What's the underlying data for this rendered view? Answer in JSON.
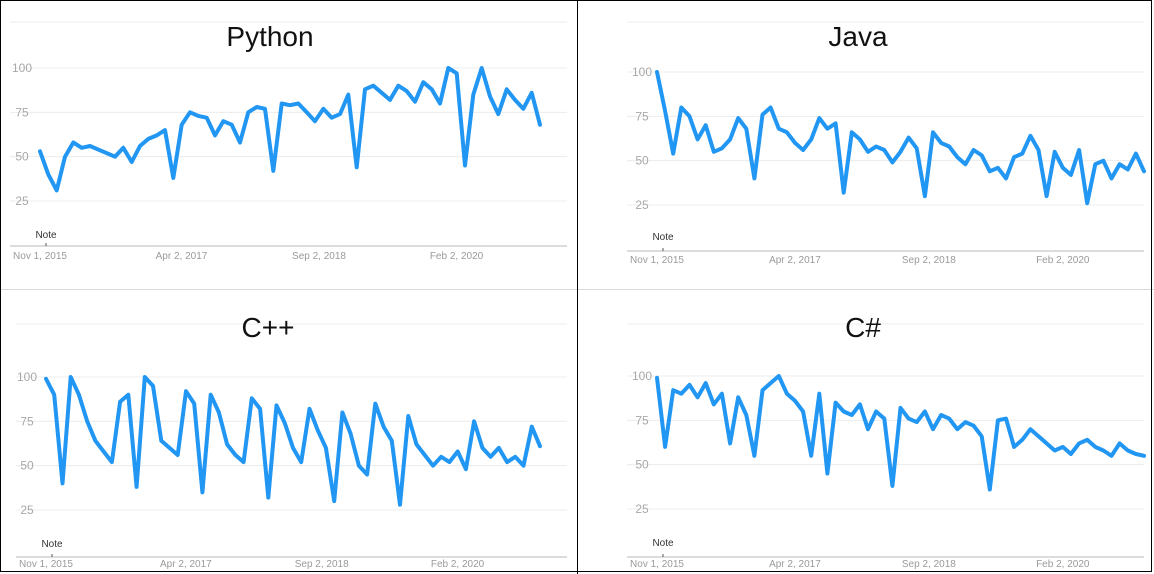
{
  "charts": [
    {
      "title": "Python",
      "note": "Note",
      "ylim": [
        25,
        100
      ],
      "yticks": [
        "100",
        "75",
        "50",
        "25"
      ],
      "xticks": [
        "Nov 1, 2015",
        "Apr 2, 2017",
        "Sep 2, 2018",
        "Feb 2, 2020"
      ]
    },
    {
      "title": "Java",
      "note": "Note",
      "ylim": [
        25,
        100
      ],
      "yticks": [
        "100",
        "75",
        "50",
        "25"
      ],
      "xticks": [
        "Nov 1, 2015",
        "Apr 2, 2017",
        "Sep 2, 2018",
        "Feb 2, 2020"
      ]
    },
    {
      "title": "C++",
      "note": "Note",
      "ylim": [
        25,
        100
      ],
      "yticks": [
        "100",
        "75",
        "50",
        "25"
      ],
      "xticks": [
        "Nov 1, 2015",
        "Apr 2, 2017",
        "Sep 2, 2018",
        "Feb 2, 2020"
      ]
    },
    {
      "title": "C#",
      "note": "Note",
      "ylim": [
        25,
        100
      ],
      "yticks": [
        "100",
        "75",
        "50",
        "25"
      ],
      "xticks": [
        "Nov 1, 2015",
        "Apr 2, 2017",
        "Sep 2, 2018",
        "Feb 2, 2020"
      ]
    }
  ],
  "chart_data": [
    {
      "type": "line",
      "title": "Python",
      "ylim": [
        25,
        100
      ],
      "grid": true,
      "line_color": "#2196f3",
      "x": [
        "2015-11",
        "2015-12",
        "2016-01",
        "2016-02",
        "2016-03",
        "2016-04",
        "2016-05",
        "2016-06",
        "2016-07",
        "2016-08",
        "2016-09",
        "2016-10",
        "2016-11",
        "2016-12",
        "2017-01",
        "2017-02",
        "2017-03",
        "2017-04",
        "2017-05",
        "2017-06",
        "2017-07",
        "2017-08",
        "2017-09",
        "2017-10",
        "2017-11",
        "2017-12",
        "2018-01",
        "2018-02",
        "2018-03",
        "2018-04",
        "2018-05",
        "2018-06",
        "2018-07",
        "2018-08",
        "2018-09",
        "2018-10",
        "2018-11",
        "2018-12",
        "2019-01",
        "2019-02",
        "2019-03",
        "2019-04",
        "2019-05",
        "2019-06",
        "2019-07",
        "2019-08",
        "2019-09",
        "2019-10",
        "2019-11",
        "2019-12",
        "2020-01",
        "2020-02",
        "2020-03",
        "2020-04",
        "2020-05",
        "2020-06",
        "2020-07",
        "2020-08",
        "2020-09",
        "2020-10",
        "2020-11"
      ],
      "values": [
        53,
        40,
        31,
        50,
        58,
        55,
        56,
        54,
        52,
        50,
        55,
        47,
        56,
        60,
        62,
        65,
        38,
        68,
        75,
        73,
        72,
        62,
        70,
        68,
        58,
        75,
        78,
        77,
        42,
        80,
        79,
        80,
        75,
        70,
        77,
        72,
        74,
        85,
        44,
        88,
        90,
        86,
        82,
        90,
        87,
        81,
        92,
        88,
        80,
        100,
        97,
        45,
        85,
        100,
        84,
        74,
        88,
        82,
        77,
        86,
        68
      ]
    },
    {
      "type": "line",
      "title": "Java",
      "ylim": [
        25,
        100
      ],
      "grid": true,
      "line_color": "#2196f3",
      "x": [
        "2015-11",
        "2015-12",
        "2016-01",
        "2016-02",
        "2016-03",
        "2016-04",
        "2016-05",
        "2016-06",
        "2016-07",
        "2016-08",
        "2016-09",
        "2016-10",
        "2016-11",
        "2016-12",
        "2017-01",
        "2017-02",
        "2017-03",
        "2017-04",
        "2017-05",
        "2017-06",
        "2017-07",
        "2017-08",
        "2017-09",
        "2017-10",
        "2017-11",
        "2017-12",
        "2018-01",
        "2018-02",
        "2018-03",
        "2018-04",
        "2018-05",
        "2018-06",
        "2018-07",
        "2018-08",
        "2018-09",
        "2018-10",
        "2018-11",
        "2018-12",
        "2019-01",
        "2019-02",
        "2019-03",
        "2019-04",
        "2019-05",
        "2019-06",
        "2019-07",
        "2019-08",
        "2019-09",
        "2019-10",
        "2019-11",
        "2019-12",
        "2020-01",
        "2020-02",
        "2020-03",
        "2020-04",
        "2020-05",
        "2020-06",
        "2020-07",
        "2020-08",
        "2020-09",
        "2020-10",
        "2020-11"
      ],
      "values": [
        100,
        78,
        54,
        80,
        75,
        62,
        70,
        55,
        57,
        62,
        74,
        68,
        40,
        76,
        80,
        68,
        66,
        60,
        56,
        62,
        74,
        68,
        71,
        32,
        66,
        62,
        55,
        58,
        56,
        49,
        55,
        63,
        57,
        30,
        66,
        60,
        58,
        52,
        48,
        56,
        53,
        44,
        46,
        40,
        52,
        54,
        64,
        56,
        30,
        55,
        46,
        42,
        56,
        26,
        48,
        50,
        40,
        48,
        45,
        54,
        44
      ]
    },
    {
      "type": "line",
      "title": "C++",
      "ylim": [
        25,
        100
      ],
      "grid": true,
      "line_color": "#2196f3",
      "x": [
        "2015-11",
        "2015-12",
        "2016-01",
        "2016-02",
        "2016-03",
        "2016-04",
        "2016-05",
        "2016-06",
        "2016-07",
        "2016-08",
        "2016-09",
        "2016-10",
        "2016-11",
        "2016-12",
        "2017-01",
        "2017-02",
        "2017-03",
        "2017-04",
        "2017-05",
        "2017-06",
        "2017-07",
        "2017-08",
        "2017-09",
        "2017-10",
        "2017-11",
        "2017-12",
        "2018-01",
        "2018-02",
        "2018-03",
        "2018-04",
        "2018-05",
        "2018-06",
        "2018-07",
        "2018-08",
        "2018-09",
        "2018-10",
        "2018-11",
        "2018-12",
        "2019-01",
        "2019-02",
        "2019-03",
        "2019-04",
        "2019-05",
        "2019-06",
        "2019-07",
        "2019-08",
        "2019-09",
        "2019-10",
        "2019-11",
        "2019-12",
        "2020-01",
        "2020-02",
        "2020-03",
        "2020-04",
        "2020-05",
        "2020-06",
        "2020-07",
        "2020-08",
        "2020-09",
        "2020-10",
        "2020-11"
      ],
      "values": [
        99,
        90,
        40,
        100,
        90,
        75,
        64,
        58,
        52,
        86,
        90,
        38,
        100,
        95,
        64,
        60,
        56,
        92,
        85,
        35,
        90,
        80,
        62,
        56,
        52,
        88,
        82,
        32,
        84,
        74,
        60,
        52,
        82,
        70,
        60,
        30,
        80,
        68,
        50,
        45,
        85,
        72,
        64,
        28,
        78,
        62,
        56,
        50,
        55,
        52,
        58,
        48,
        75,
        60,
        55,
        60,
        52,
        55,
        50,
        72,
        61
      ]
    },
    {
      "type": "line",
      "title": "C#",
      "ylim": [
        25,
        100
      ],
      "grid": true,
      "line_color": "#2196f3",
      "x": [
        "2015-11",
        "2015-12",
        "2016-01",
        "2016-02",
        "2016-03",
        "2016-04",
        "2016-05",
        "2016-06",
        "2016-07",
        "2016-08",
        "2016-09",
        "2016-10",
        "2016-11",
        "2016-12",
        "2017-01",
        "2017-02",
        "2017-03",
        "2017-04",
        "2017-05",
        "2017-06",
        "2017-07",
        "2017-08",
        "2017-09",
        "2017-10",
        "2017-11",
        "2017-12",
        "2018-01",
        "2018-02",
        "2018-03",
        "2018-04",
        "2018-05",
        "2018-06",
        "2018-07",
        "2018-08",
        "2018-09",
        "2018-10",
        "2018-11",
        "2018-12",
        "2019-01",
        "2019-02",
        "2019-03",
        "2019-04",
        "2019-05",
        "2019-06",
        "2019-07",
        "2019-08",
        "2019-09",
        "2019-10",
        "2019-11",
        "2019-12",
        "2020-01",
        "2020-02",
        "2020-03",
        "2020-04",
        "2020-05",
        "2020-06",
        "2020-07",
        "2020-08",
        "2020-09",
        "2020-10",
        "2020-11"
      ],
      "values": [
        99,
        60,
        92,
        90,
        95,
        88,
        96,
        84,
        90,
        62,
        88,
        78,
        55,
        92,
        96,
        100,
        90,
        86,
        80,
        55,
        90,
        45,
        85,
        80,
        78,
        84,
        70,
        80,
        76,
        38,
        82,
        76,
        74,
        80,
        70,
        78,
        76,
        70,
        74,
        72,
        66,
        36,
        75,
        76,
        60,
        64,
        70,
        66,
        62,
        58,
        60,
        56,
        62,
        64,
        60,
        58,
        55,
        62,
        58,
        56,
        55
      ]
    }
  ]
}
